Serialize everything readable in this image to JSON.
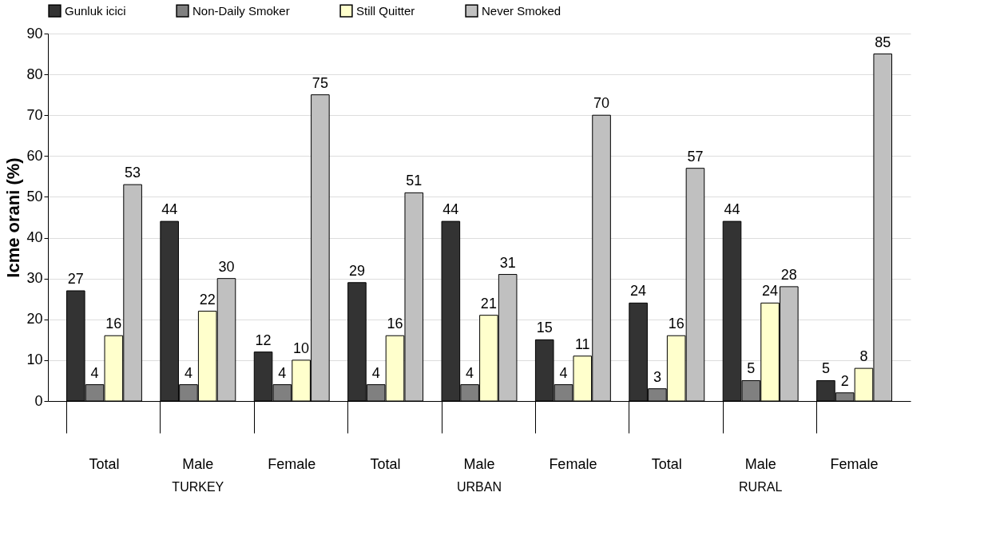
{
  "chart_data": {
    "type": "bar",
    "ylabel": "Icme orani (%)",
    "categories": [
      "Total",
      "Male",
      "Female",
      "Total",
      "Male",
      "Female",
      "Total",
      "Male",
      "Female"
    ],
    "series": [
      {
        "name": "Gunluk icici",
        "color": "#333333",
        "values": [
          27,
          44,
          12,
          29,
          44,
          15,
          24,
          44,
          5
        ]
      },
      {
        "name": "Non-Daily Smoker",
        "color": "#808080",
        "values": [
          4,
          4,
          4,
          4,
          4,
          4,
          3,
          5,
          2
        ]
      },
      {
        "name": "Still Quitter",
        "color": "#ffffcc",
        "values": [
          16,
          22,
          10,
          16,
          21,
          11,
          16,
          24,
          8
        ]
      },
      {
        "name": "Never Smoked",
        "color": "#c0c0c0",
        "values": [
          53,
          30,
          75,
          51,
          31,
          70,
          57,
          28,
          85
        ]
      }
    ],
    "ylim": [
      0,
      90
    ],
    "yticks": [
      0,
      10,
      20,
      30,
      40,
      50,
      60,
      70,
      80,
      90
    ],
    "grid": "y",
    "legend": "top",
    "data_labels": true,
    "annotations": [
      "TURKEY",
      "URBAN",
      "RURAL"
    ]
  }
}
